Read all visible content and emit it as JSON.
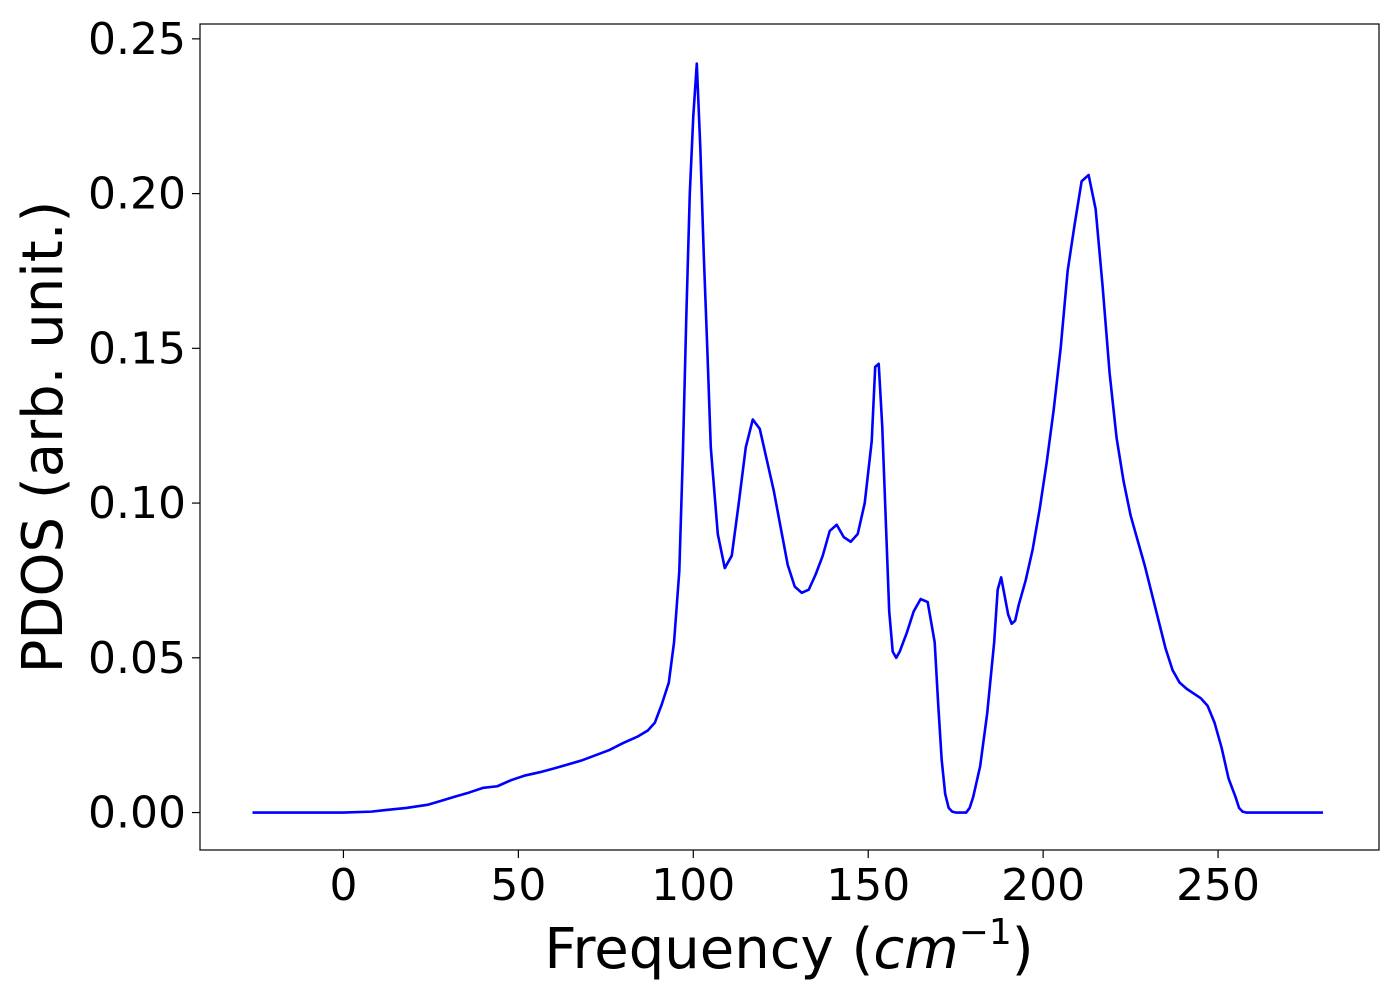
{
  "chart_data": {
    "type": "line",
    "xlabel_text": "Frequency (",
    "xlabel_math_base": "cm",
    "xlabel_math_exp": "−1",
    "xlabel_close": ")",
    "ylabel": "PDOS (arb. unit.)",
    "xlim": [
      -41,
      296
    ],
    "ylim": [
      -0.0121,
      0.2548
    ],
    "xticks": [
      0,
      50,
      100,
      150,
      200,
      250
    ],
    "xtick_labels": [
      "0",
      "50",
      "100",
      "150",
      "200",
      "250"
    ],
    "yticks": [
      0.0,
      0.05,
      0.1,
      0.15,
      0.2,
      0.25
    ],
    "ytick_labels": [
      "0.00",
      "0.05",
      "0.10",
      "0.15",
      "0.20",
      "0.25"
    ],
    "grid": false,
    "series": [
      {
        "color": "#0000ff",
        "x": [
          -26,
          -10,
          0,
          8,
          12,
          18,
          24,
          28,
          32,
          36,
          40,
          44,
          48,
          52,
          56,
          60,
          64,
          68,
          72,
          76,
          80,
          84,
          87,
          89,
          91,
          93,
          94.5,
          96,
          97,
          98,
          99,
          100,
          101,
          102,
          103,
          104,
          105,
          107,
          109,
          111,
          113,
          115,
          117,
          119,
          121,
          123,
          125,
          127,
          129,
          131,
          133,
          135,
          137,
          139,
          141,
          143,
          145,
          147,
          149,
          151,
          152,
          153,
          154,
          155,
          156,
          157,
          158,
          159,
          160,
          161,
          163,
          165,
          167,
          169,
          170,
          171,
          172,
          173,
          174,
          175,
          176,
          177,
          178,
          179,
          180,
          182,
          184,
          186,
          187,
          188,
          189,
          190,
          191,
          192,
          193,
          195,
          197,
          199,
          201,
          203,
          205,
          207,
          209,
          211,
          213,
          215,
          217,
          219,
          221,
          223,
          225,
          227,
          229,
          231,
          233,
          235,
          237,
          239,
          241,
          243,
          245,
          247,
          249,
          251,
          253,
          255,
          256,
          257,
          258,
          259,
          260,
          262,
          265,
          270,
          280
        ],
        "y": [
          0,
          0,
          0,
          0.0003,
          0.0008,
          0.0015,
          0.0025,
          0.0038,
          0.0052,
          0.0065,
          0.008,
          0.0085,
          0.0105,
          0.012,
          0.013,
          0.0142,
          0.0155,
          0.0168,
          0.0185,
          0.0202,
          0.0225,
          0.0245,
          0.0265,
          0.029,
          0.035,
          0.042,
          0.055,
          0.078,
          0.115,
          0.16,
          0.2,
          0.225,
          0.242,
          0.215,
          0.18,
          0.15,
          0.118,
          0.09,
          0.079,
          0.083,
          0.1,
          0.118,
          0.127,
          0.124,
          0.114,
          0.104,
          0.092,
          0.08,
          0.073,
          0.071,
          0.072,
          0.077,
          0.083,
          0.091,
          0.093,
          0.089,
          0.0875,
          0.09,
          0.1,
          0.12,
          0.144,
          0.145,
          0.125,
          0.095,
          0.065,
          0.052,
          0.05,
          0.052,
          0.055,
          0.058,
          0.065,
          0.069,
          0.068,
          0.055,
          0.035,
          0.017,
          0.006,
          0.0015,
          0.0003,
          0,
          0,
          0,
          0,
          0.0015,
          0.005,
          0.015,
          0.032,
          0.055,
          0.072,
          0.076,
          0.07,
          0.064,
          0.061,
          0.062,
          0.067,
          0.075,
          0.085,
          0.098,
          0.113,
          0.13,
          0.15,
          0.175,
          0.19,
          0.204,
          0.206,
          0.195,
          0.17,
          0.142,
          0.121,
          0.107,
          0.096,
          0.088,
          0.08,
          0.071,
          0.062,
          0.053,
          0.046,
          0.042,
          0.04,
          0.0385,
          0.037,
          0.0345,
          0.029,
          0.021,
          0.011,
          0.005,
          0.0015,
          0.0003,
          0,
          0,
          0,
          0,
          0,
          0,
          0
        ]
      }
    ]
  }
}
